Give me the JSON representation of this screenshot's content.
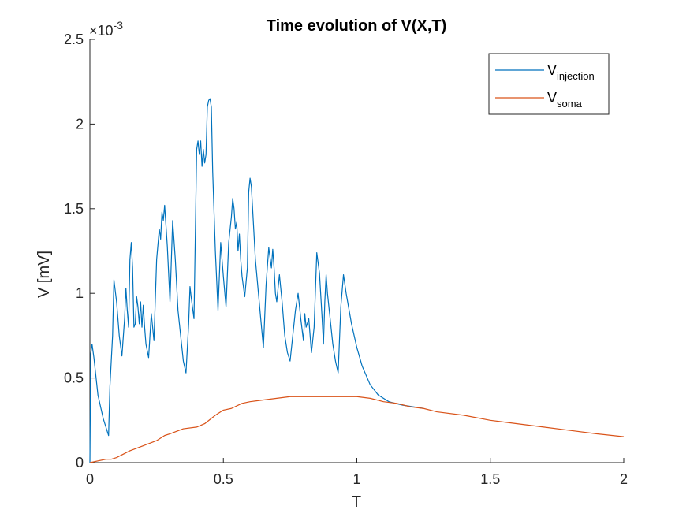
{
  "chart_data": {
    "type": "line",
    "title": "Time evolution of V(X,T)",
    "xlabel": "T",
    "ylabel": "V [mV]",
    "y_exponent": "×10",
    "y_exponent_power": "-3",
    "xlim": [
      0,
      2
    ],
    "ylim": [
      0,
      0.0025
    ],
    "x_ticks": [
      0,
      0.5,
      1,
      1.5,
      2
    ],
    "x_tick_labels": [
      "0",
      "0.5",
      "1",
      "1.5",
      "2"
    ],
    "y_ticks": [
      0,
      0.0005,
      0.001,
      0.0015,
      0.002,
      0.0025
    ],
    "y_tick_labels": [
      "0",
      "0.5",
      "1",
      "1.5",
      "2",
      "2.5"
    ],
    "grid": false,
    "legend_position": "top-right",
    "series": [
      {
        "name": "V",
        "name_subscript": "injection",
        "color": "#0072BD",
        "points": [
          [
            0,
            0
          ],
          [
            0.003,
            0.00064
          ],
          [
            0.008,
            0.0007
          ],
          [
            0.015,
            0.00062
          ],
          [
            0.03,
            0.0004
          ],
          [
            0.05,
            0.00026
          ],
          [
            0.07,
            0.00016
          ],
          [
            0.075,
            0.00045
          ],
          [
            0.085,
            0.00075
          ],
          [
            0.09,
            0.00108
          ],
          [
            0.1,
            0.00095
          ],
          [
            0.11,
            0.00075
          ],
          [
            0.12,
            0.00063
          ],
          [
            0.13,
            0.00085
          ],
          [
            0.135,
            0.00103
          ],
          [
            0.14,
            0.0009
          ],
          [
            0.145,
            0.0008
          ],
          [
            0.15,
            0.0012
          ],
          [
            0.155,
            0.0013
          ],
          [
            0.16,
            0.00115
          ],
          [
            0.165,
            0.0008
          ],
          [
            0.17,
            0.00082
          ],
          [
            0.175,
            0.00098
          ],
          [
            0.18,
            0.00092
          ],
          [
            0.185,
            0.00082
          ],
          [
            0.19,
            0.00095
          ],
          [
            0.195,
            0.0008
          ],
          [
            0.2,
            0.00093
          ],
          [
            0.205,
            0.0008
          ],
          [
            0.21,
            0.0007
          ],
          [
            0.22,
            0.00062
          ],
          [
            0.23,
            0.00088
          ],
          [
            0.24,
            0.00072
          ],
          [
            0.25,
            0.0012
          ],
          [
            0.26,
            0.00138
          ],
          [
            0.265,
            0.00132
          ],
          [
            0.27,
            0.00148
          ],
          [
            0.275,
            0.00143
          ],
          [
            0.28,
            0.00152
          ],
          [
            0.29,
            0.00128
          ],
          [
            0.3,
            0.00095
          ],
          [
            0.31,
            0.00143
          ],
          [
            0.32,
            0.0012
          ],
          [
            0.33,
            0.0009
          ],
          [
            0.34,
            0.00075
          ],
          [
            0.35,
            0.0006
          ],
          [
            0.36,
            0.00053
          ],
          [
            0.37,
            0.00082
          ],
          [
            0.375,
            0.00104
          ],
          [
            0.38,
            0.00097
          ],
          [
            0.39,
            0.00085
          ],
          [
            0.4,
            0.00185
          ],
          [
            0.405,
            0.0019
          ],
          [
            0.41,
            0.00182
          ],
          [
            0.415,
            0.0019
          ],
          [
            0.42,
            0.00175
          ],
          [
            0.425,
            0.00185
          ],
          [
            0.43,
            0.00177
          ],
          [
            0.435,
            0.00182
          ],
          [
            0.44,
            0.0021
          ],
          [
            0.445,
            0.00214
          ],
          [
            0.45,
            0.00215
          ],
          [
            0.455,
            0.0021
          ],
          [
            0.46,
            0.00172
          ],
          [
            0.47,
            0.00125
          ],
          [
            0.48,
            0.0009
          ],
          [
            0.49,
            0.0013
          ],
          [
            0.5,
            0.0011
          ],
          [
            0.51,
            0.00092
          ],
          [
            0.52,
            0.0013
          ],
          [
            0.53,
            0.00145
          ],
          [
            0.535,
            0.00156
          ],
          [
            0.54,
            0.0015
          ],
          [
            0.545,
            0.00138
          ],
          [
            0.55,
            0.00142
          ],
          [
            0.555,
            0.00125
          ],
          [
            0.56,
            0.00135
          ],
          [
            0.565,
            0.0012
          ],
          [
            0.57,
            0.0011
          ],
          [
            0.58,
            0.00098
          ],
          [
            0.59,
            0.00115
          ],
          [
            0.595,
            0.0016
          ],
          [
            0.6,
            0.00168
          ],
          [
            0.605,
            0.00163
          ],
          [
            0.62,
            0.0012
          ],
          [
            0.64,
            0.00085
          ],
          [
            0.65,
            0.00068
          ],
          [
            0.66,
            0.00105
          ],
          [
            0.67,
            0.00127
          ],
          [
            0.68,
            0.00115
          ],
          [
            0.685,
            0.00126
          ],
          [
            0.69,
            0.00115
          ],
          [
            0.695,
            0.001
          ],
          [
            0.7,
            0.00095
          ],
          [
            0.71,
            0.00111
          ],
          [
            0.72,
            0.00095
          ],
          [
            0.73,
            0.00075
          ],
          [
            0.74,
            0.00065
          ],
          [
            0.75,
            0.0006
          ],
          [
            0.76,
            0.00075
          ],
          [
            0.77,
            0.0009
          ],
          [
            0.78,
            0.001
          ],
          [
            0.79,
            0.00085
          ],
          [
            0.8,
            0.00072
          ],
          [
            0.805,
            0.00088
          ],
          [
            0.81,
            0.0008
          ],
          [
            0.82,
            0.00085
          ],
          [
            0.83,
            0.00065
          ],
          [
            0.84,
            0.0008
          ],
          [
            0.85,
            0.00124
          ],
          [
            0.86,
            0.00112
          ],
          [
            0.87,
            0.00085
          ],
          [
            0.875,
            0.0007
          ],
          [
            0.88,
            0.00095
          ],
          [
            0.885,
            0.00111
          ],
          [
            0.89,
            0.001
          ],
          [
            0.9,
            0.00085
          ],
          [
            0.91,
            0.0007
          ],
          [
            0.92,
            0.0006
          ],
          [
            0.93,
            0.00053
          ],
          [
            0.94,
            0.00092
          ],
          [
            0.95,
            0.00111
          ],
          [
            0.96,
            0.001
          ],
          [
            0.98,
            0.00082
          ],
          [
            1.0,
            0.00068
          ],
          [
            1.02,
            0.00057
          ],
          [
            1.05,
            0.00046
          ],
          [
            1.08,
            0.0004
          ],
          [
            1.12,
            0.00036
          ],
          [
            1.17,
            0.00034
          ],
          [
            1.25,
            0.00032
          ]
        ]
      },
      {
        "name": "V",
        "name_subscript": "soma",
        "color": "#D95319",
        "points": [
          [
            0,
            0.0
          ],
          [
            0.03,
            1e-05
          ],
          [
            0.06,
            2e-05
          ],
          [
            0.08,
            2e-05
          ],
          [
            0.1,
            3e-05
          ],
          [
            0.15,
            7e-05
          ],
          [
            0.2,
            0.0001
          ],
          [
            0.25,
            0.00013
          ],
          [
            0.28,
            0.00016
          ],
          [
            0.3,
            0.00017
          ],
          [
            0.35,
            0.0002
          ],
          [
            0.4,
            0.00021
          ],
          [
            0.43,
            0.00023
          ],
          [
            0.47,
            0.00028
          ],
          [
            0.5,
            0.00031
          ],
          [
            0.53,
            0.00032
          ],
          [
            0.57,
            0.00035
          ],
          [
            0.6,
            0.00036
          ],
          [
            0.65,
            0.00037
          ],
          [
            0.7,
            0.00038
          ],
          [
            0.75,
            0.00039
          ],
          [
            0.8,
            0.00039
          ],
          [
            0.85,
            0.00039
          ],
          [
            0.9,
            0.00039
          ],
          [
            0.95,
            0.00039
          ],
          [
            1.0,
            0.00039
          ],
          [
            1.05,
            0.00038
          ],
          [
            1.1,
            0.00036
          ],
          [
            1.15,
            0.00035
          ],
          [
            1.2,
            0.00033
          ],
          [
            1.25,
            0.00032
          ],
          [
            1.3,
            0.0003
          ],
          [
            1.4,
            0.00028
          ],
          [
            1.5,
            0.00025
          ],
          [
            1.6,
            0.00023
          ],
          [
            1.7,
            0.00021
          ],
          [
            1.8,
            0.00019
          ],
          [
            1.9,
            0.00017
          ],
          [
            2.0,
            0.000153
          ]
        ]
      }
    ]
  }
}
